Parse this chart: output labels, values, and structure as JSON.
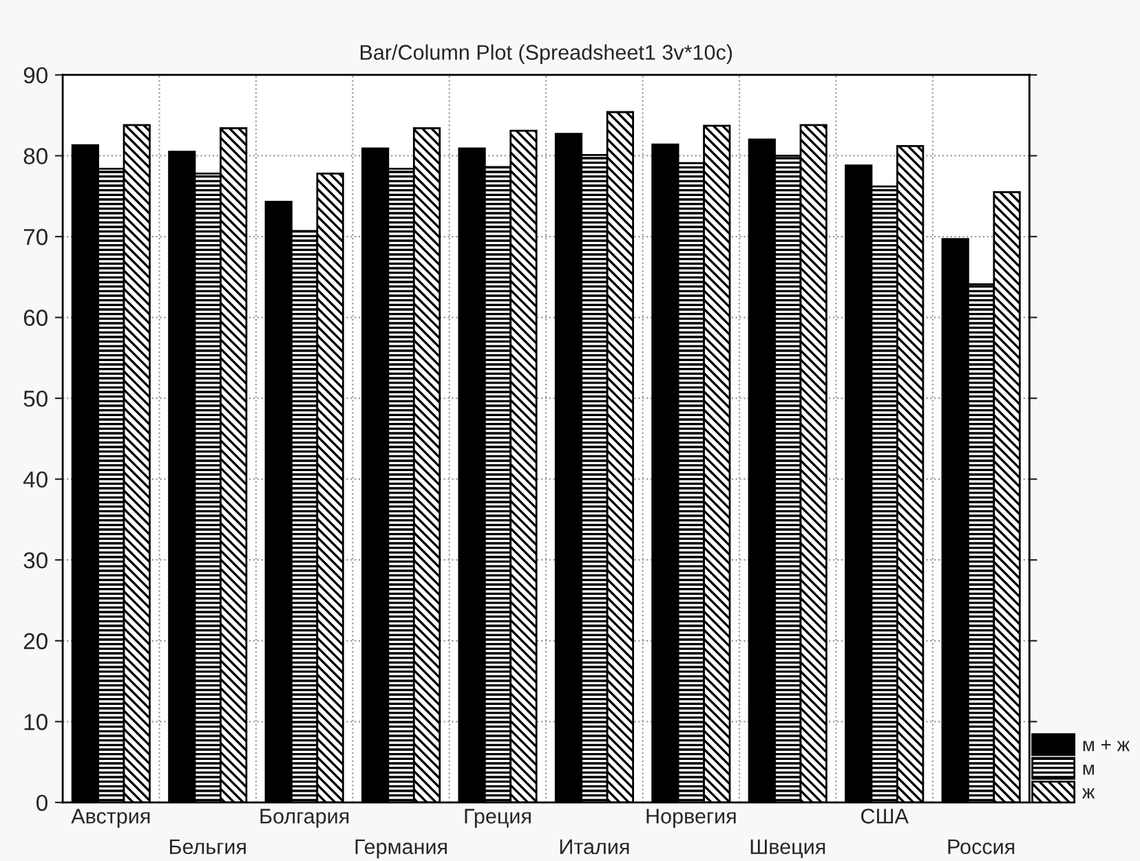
{
  "chart_data": {
    "type": "bar",
    "title": "Bar/Column Plot (Spreadsheet1 3v*10c)",
    "categories": [
      "Австрия",
      "Бельгия",
      "Болгария",
      "Германия",
      "Греция",
      "Италия",
      "Норвегия",
      "Швеция",
      "США",
      "Россия"
    ],
    "series": [
      {
        "name": "м + ж",
        "color": "#000000",
        "values": [
          81.3,
          80.5,
          74.3,
          80.9,
          80.9,
          82.7,
          81.4,
          82.0,
          78.8,
          69.7
        ]
      },
      {
        "name": "м",
        "color": "#000000",
        "values": [
          78.4,
          77.8,
          70.7,
          78.4,
          78.6,
          80.1,
          79.1,
          80.0,
          76.2,
          64.1
        ]
      },
      {
        "name": "ж",
        "color": "#000000",
        "values": [
          83.8,
          83.4,
          77.8,
          83.4,
          83.1,
          85.4,
          83.7,
          83.8,
          81.2,
          75.5
        ]
      }
    ],
    "ylim": [
      0,
      90
    ],
    "yticks": [
      0,
      10,
      20,
      30,
      40,
      50,
      60,
      70,
      80,
      90
    ],
    "grid": true,
    "legend": "bottom right"
  }
}
